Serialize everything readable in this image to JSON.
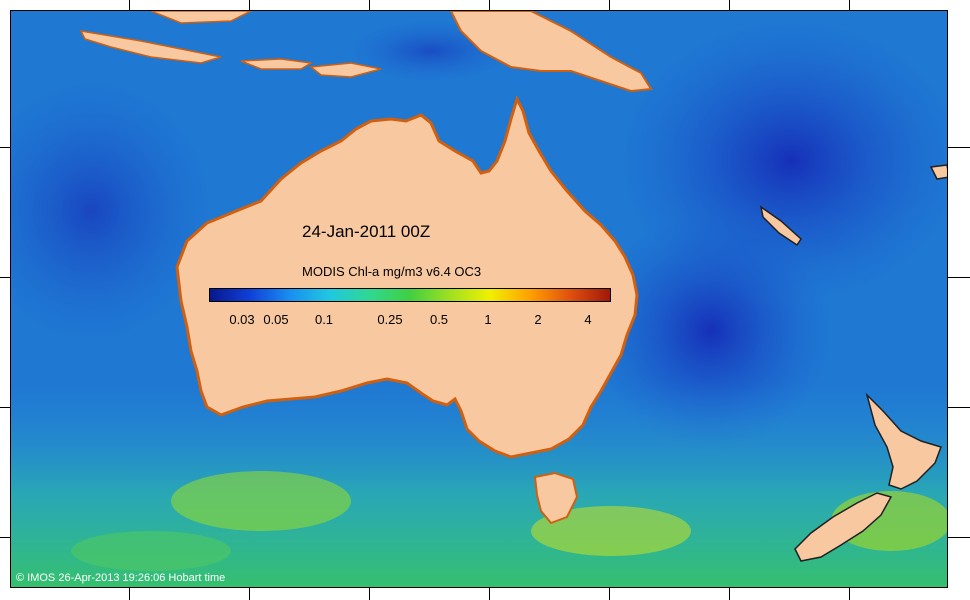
{
  "map": {
    "date_label": "24-Jan-2011 00Z",
    "credit": "© IMOS 26-Apr-2013 19:26:06 Hobart time"
  },
  "colorbar": {
    "title": "MODIS Chl-a mg/m3 v6.4 OC3",
    "ticks": [
      "0.03",
      "0.05",
      "0.1",
      "0.25",
      "0.5",
      "1",
      "2",
      "4"
    ],
    "colors": [
      "#08188c",
      "#1040d8",
      "#1a8ff0",
      "#20c8e0",
      "#30d890",
      "#40d040",
      "#a0e020",
      "#f0f000",
      "#ffa000",
      "#e05010",
      "#a01808"
    ]
  },
  "colors": {
    "land": "#f8c8a0",
    "ocean_low": "#1a3fc8",
    "ocean_mid": "#2a8fe0",
    "ocean_high": "#30c860",
    "bloom": "#e0e020",
    "coastal": "#e05010"
  }
}
